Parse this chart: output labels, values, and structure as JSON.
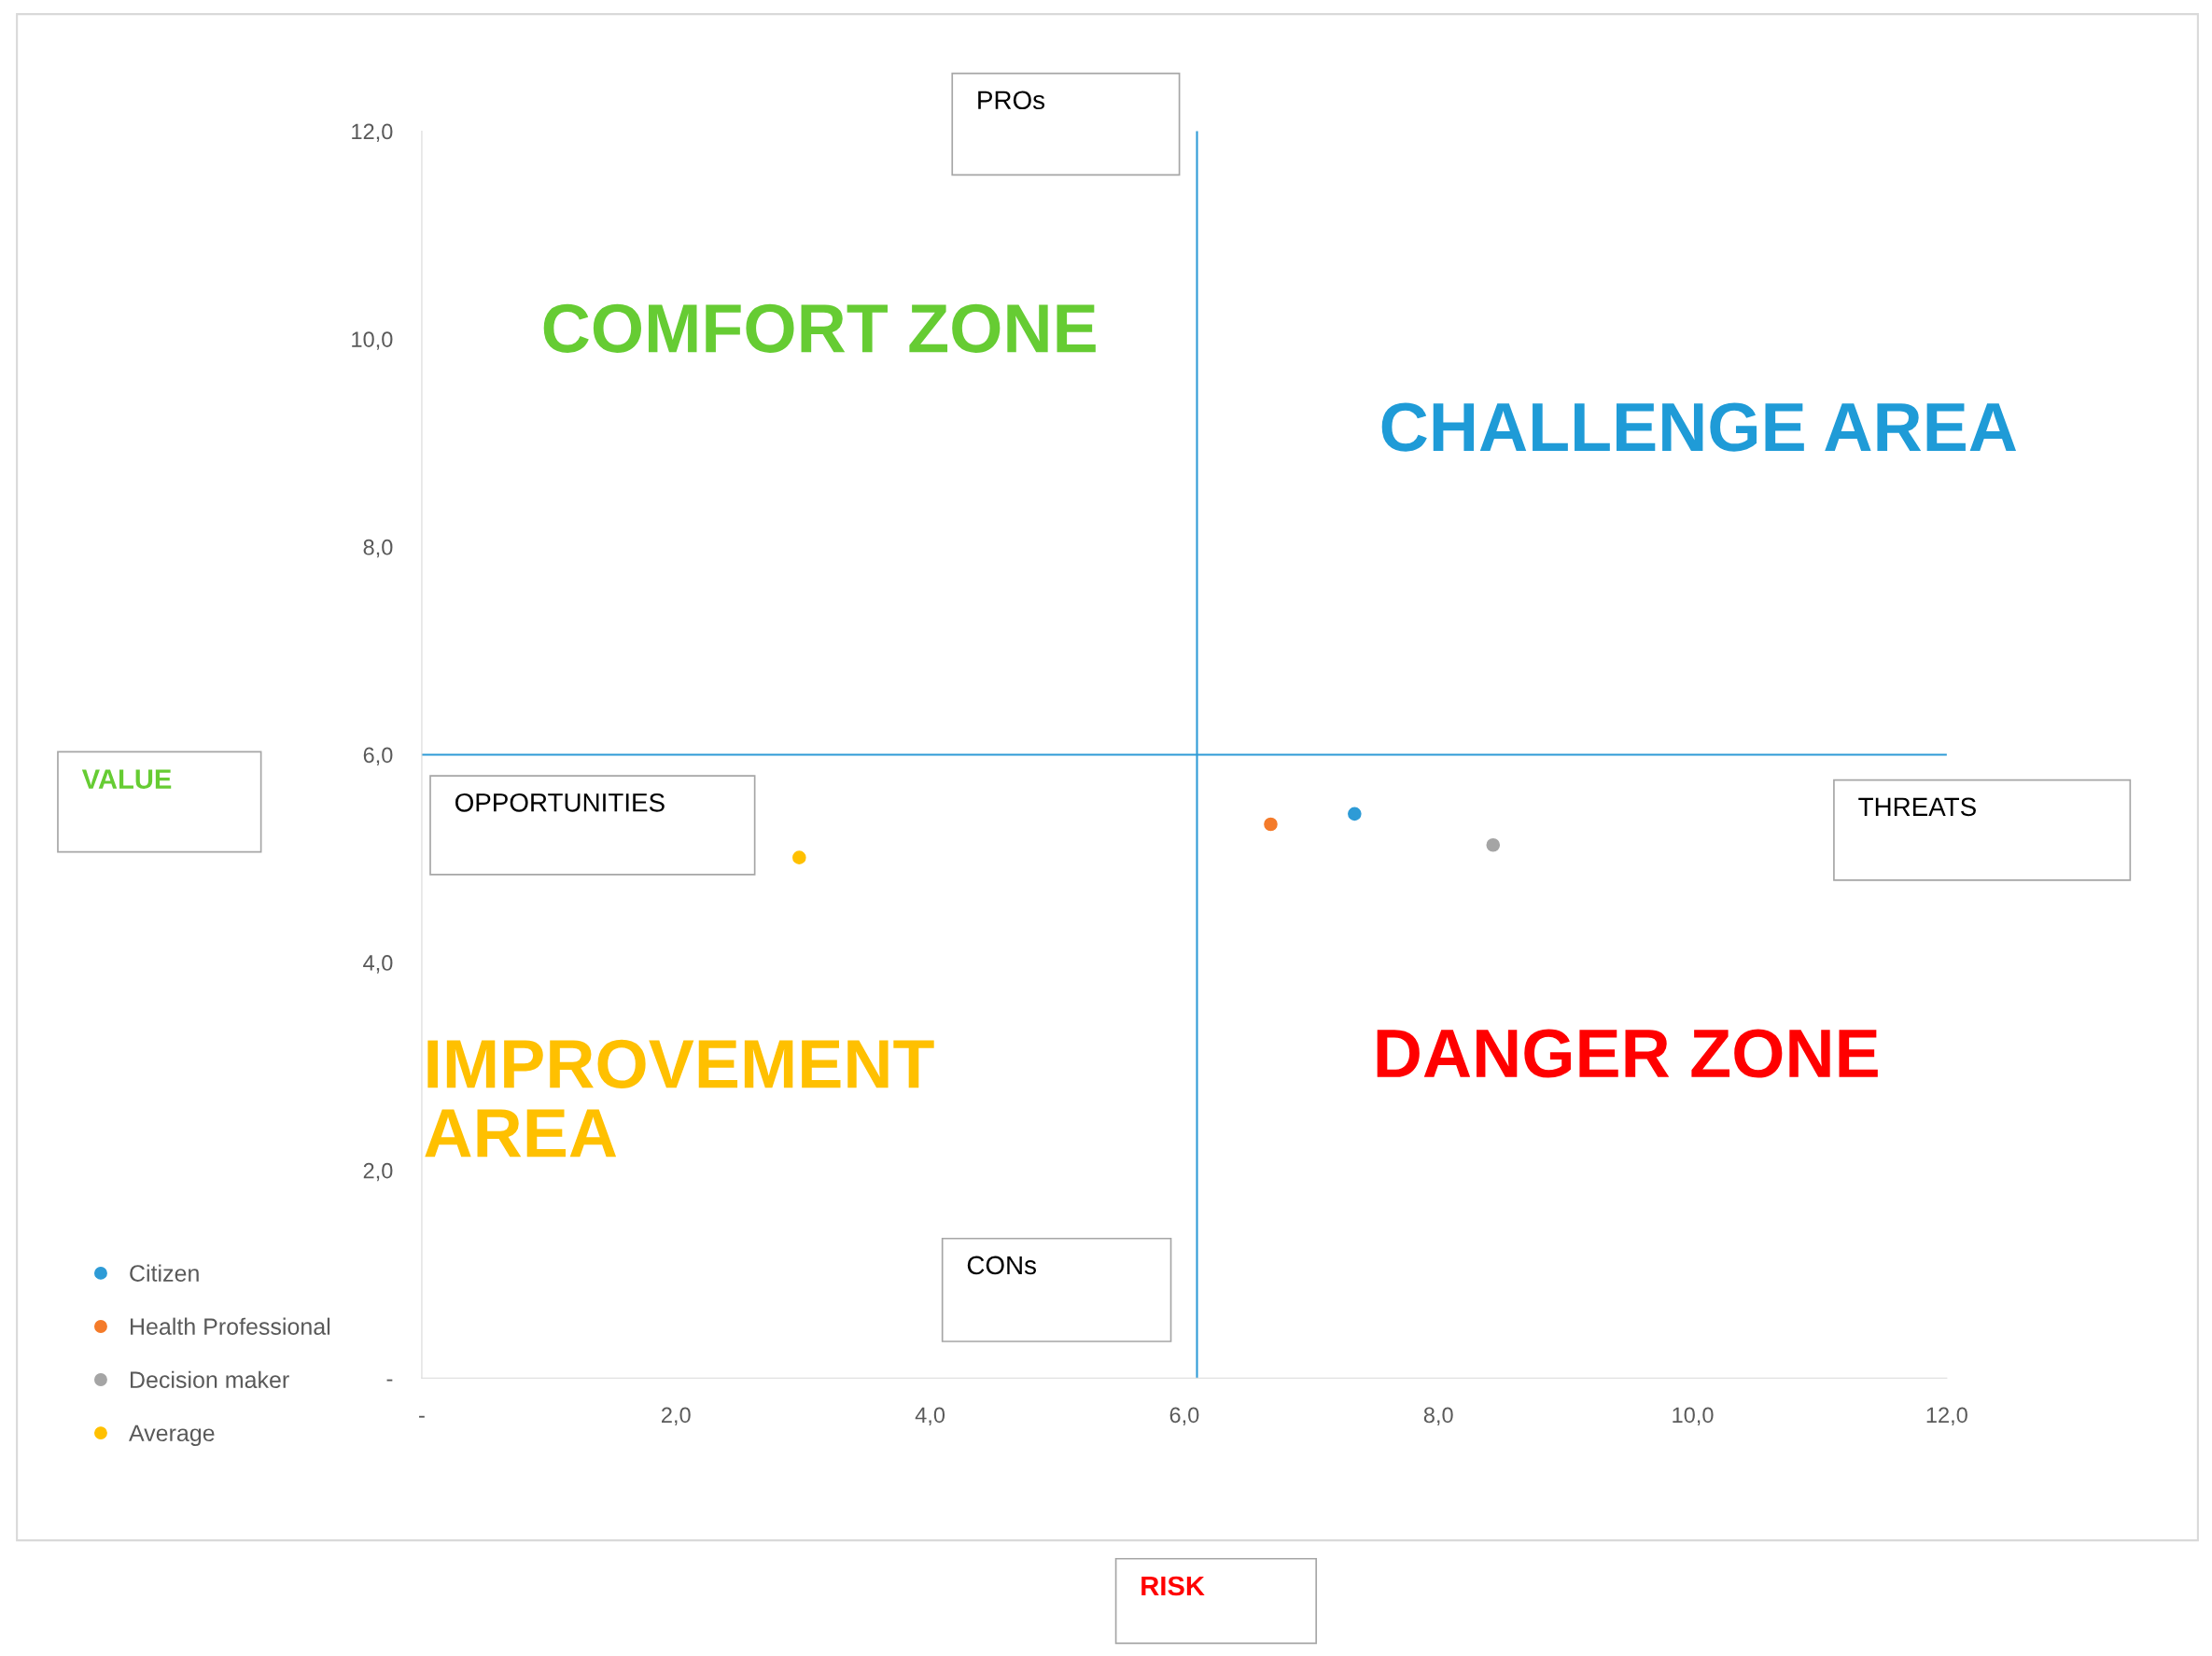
{
  "chart_data": {
    "type": "scatter",
    "series": [
      {
        "name": "Citizen",
        "color": "#2e9bd6",
        "x": [
          7.34
        ],
        "values": [
          5.43
        ]
      },
      {
        "name": "Health Professional",
        "color": "#f47b2a",
        "x": [
          6.68
        ],
        "values": [
          5.33
        ]
      },
      {
        "name": "Decision maker",
        "color": "#a5a5a5",
        "x": [
          8.43
        ],
        "values": [
          5.13
        ]
      },
      {
        "name": "Average",
        "color": "#ffc000",
        "x": [
          2.97
        ],
        "values": [
          5.01
        ]
      }
    ],
    "xlim": [
      0,
      12
    ],
    "ylim": [
      0,
      12
    ],
    "xticks": [
      {
        "value": 0,
        "label": "-"
      },
      {
        "value": 2,
        "label": "2,0"
      },
      {
        "value": 4,
        "label": "4,0"
      },
      {
        "value": 6,
        "label": "6,0"
      },
      {
        "value": 8,
        "label": "8,0"
      },
      {
        "value": 10,
        "label": "10,0"
      },
      {
        "value": 12,
        "label": "12,0"
      }
    ],
    "yticks": [
      {
        "value": 0,
        "label": "-"
      },
      {
        "value": 2,
        "label": "2,0"
      },
      {
        "value": 4,
        "label": "4,0"
      },
      {
        "value": 6,
        "label": "6,0"
      },
      {
        "value": 8,
        "label": "8,0"
      },
      {
        "value": 10,
        "label": "10,0"
      },
      {
        "value": 12,
        "label": "12,0"
      }
    ],
    "ref_lines": [
      {
        "axis": "x",
        "value": 6.1,
        "color": "#2e9bd6"
      },
      {
        "axis": "y",
        "value": 6.0,
        "color": "#2e9bd6"
      }
    ],
    "annotations": [
      "PROs",
      "COMFORT ZONE",
      "CHALLENGE AREA",
      "OPPORTUNITIES",
      "THREATS",
      "IMPROVEMENT\nAREA",
      "DANGER ZONE",
      "CONs",
      "VALUE",
      "RISK"
    ],
    "marker": "circle",
    "grid": false,
    "legend": "bottom left"
  }
}
